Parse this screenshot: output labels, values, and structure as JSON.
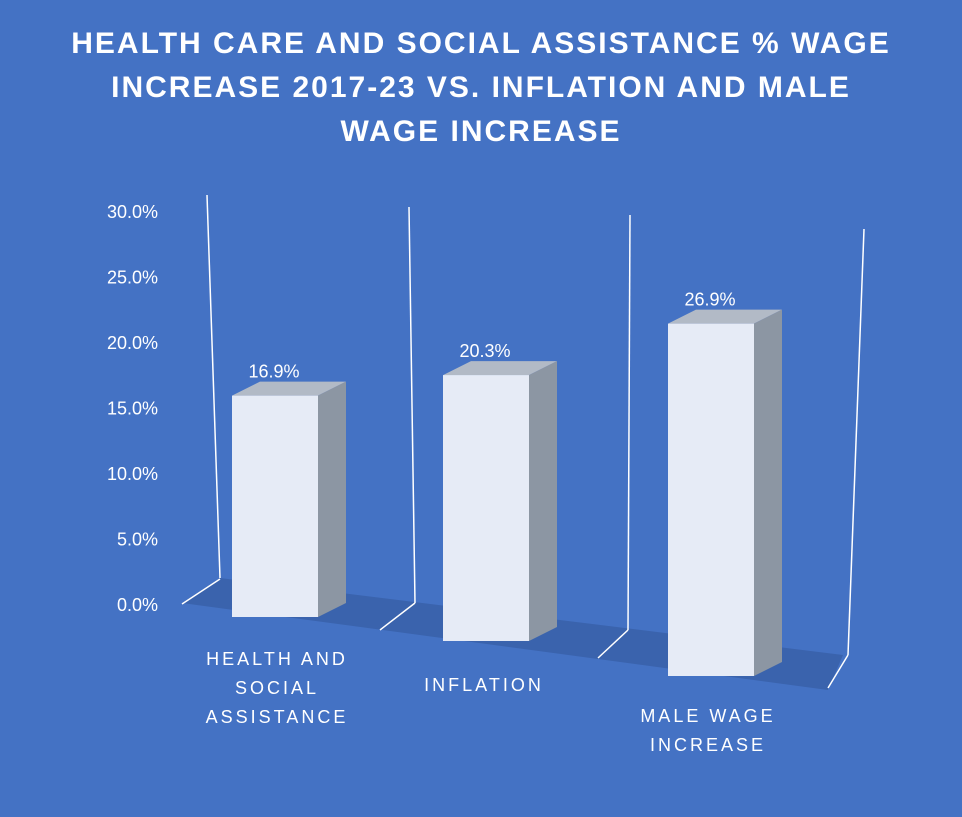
{
  "chart_data": {
    "type": "bar",
    "title": "HEALTH CARE AND SOCIAL ASSISTANCE % WAGE INCREASE 2017-23 VS. INFLATION AND MALE WAGE INCREASE",
    "categories": [
      [
        "HEALTH AND",
        "SOCIAL",
        "ASSISTANCE"
      ],
      [
        "INFLATION"
      ],
      [
        "MALE WAGE",
        "INCREASE"
      ]
    ],
    "values": [
      16.9,
      20.3,
      26.9
    ],
    "data_labels": [
      "16.9%",
      "20.3%",
      "26.9%"
    ],
    "yticks": [
      "0.0%",
      "5.0%",
      "10.0%",
      "15.0%",
      "20.0%",
      "25.0%",
      "30.0%"
    ],
    "ylim": [
      0,
      30
    ],
    "grid": false,
    "style": "3d-column",
    "colors": {
      "background": "#4472c4",
      "floor": "#3a63ad",
      "bar_front": "#e6ebf6",
      "bar_side": "#8c96a3",
      "bar_top": "#b2bac6",
      "text": "#ffffff",
      "walls": "#ffffff"
    }
  }
}
